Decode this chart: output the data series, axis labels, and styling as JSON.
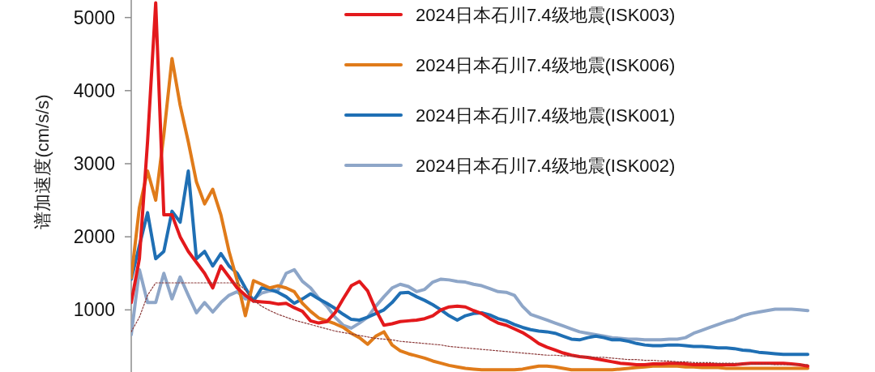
{
  "chart_data": {
    "type": "line",
    "ylabel": "谱加速度(cm/s/s)",
    "categories": [
      null,
      null,
      null,
      null,
      null,
      null,
      null,
      null,
      null,
      null,
      null,
      null,
      null,
      null,
      null,
      null,
      null,
      null,
      null,
      null,
      null,
      null,
      null,
      null,
      null,
      null,
      null,
      null,
      null,
      null,
      null,
      null,
      null,
      null,
      null,
      null,
      null,
      null,
      null,
      null,
      null,
      null,
      null,
      null,
      null,
      null,
      null,
      null,
      null,
      null,
      null,
      null,
      null,
      null,
      null,
      null,
      null,
      null,
      null,
      null,
      null,
      null,
      null,
      null,
      null,
      null,
      null,
      null,
      null,
      null,
      null,
      null,
      null,
      null,
      null,
      null,
      null,
      null,
      null,
      null,
      null,
      null,
      null,
      null
    ],
    "series": [
      {
        "line_style": "dotted",
        "color": "#8b3a3a",
        "values": [
          700,
          900,
          1200,
          1370,
          1370,
          1370,
          1370,
          1370,
          1370,
          1370,
          1370,
          1370,
          1370,
          1370,
          1270,
          1130,
          1050,
          990,
          940,
          900,
          860,
          830,
          800,
          770,
          740,
          710,
          690,
          670,
          650,
          630,
          610,
          600,
          590,
          570,
          560,
          550,
          540,
          530,
          520,
          500,
          490,
          480,
          470,
          460,
          450,
          440,
          430,
          420,
          410,
          400,
          390,
          380,
          380,
          370,
          370,
          360,
          360,
          350,
          350,
          340,
          330,
          320,
          320,
          310,
          310,
          300,
          300,
          290,
          290,
          280,
          280,
          280,
          270,
          270,
          270,
          260,
          260,
          260,
          260,
          250,
          250,
          250,
          250,
          250
        ]
      },
      {
        "name": "2024日本石川7.4级地震(ISK002)",
        "color": "#8ea6c8",
        "values": [
          660,
          1550,
          1100,
          1100,
          1500,
          1150,
          1450,
          1200,
          960,
          1100,
          970,
          1100,
          1200,
          1250,
          1150,
          1150,
          1230,
          1260,
          1270,
          1500,
          1550,
          1390,
          1300,
          1160,
          1050,
          900,
          790,
          750,
          820,
          900,
          1050,
          1180,
          1300,
          1350,
          1320,
          1250,
          1280,
          1380,
          1420,
          1410,
          1390,
          1380,
          1350,
          1330,
          1290,
          1250,
          1240,
          1200,
          1050,
          940,
          900,
          860,
          820,
          780,
          740,
          700,
          680,
          660,
          640,
          620,
          610,
          600,
          600,
          590,
          590,
          590,
          600,
          600,
          620,
          680,
          720,
          760,
          800,
          840,
          870,
          920,
          950,
          970,
          990,
          1010,
          1010,
          1010,
          1000,
          990
        ]
      },
      {
        "name": "2024日本石川7.4级地震(ISK001)",
        "color": "#1f6fb4",
        "values": [
          1420,
          1880,
          2330,
          1700,
          1800,
          2350,
          2200,
          2900,
          1700,
          1800,
          1600,
          1770,
          1600,
          1500,
          1300,
          1120,
          1300,
          1280,
          1240,
          1180,
          1090,
          1150,
          1220,
          1150,
          1090,
          1020,
          940,
          870,
          860,
          900,
          950,
          1000,
          1100,
          1230,
          1240,
          1180,
          1130,
          1070,
          1000,
          920,
          860,
          920,
          950,
          960,
          930,
          880,
          850,
          800,
          760,
          730,
          710,
          700,
          680,
          640,
          600,
          590,
          620,
          640,
          620,
          590,
          590,
          570,
          540,
          520,
          510,
          510,
          520,
          520,
          510,
          500,
          500,
          490,
          480,
          480,
          470,
          450,
          440,
          420,
          410,
          400,
          390,
          390,
          390,
          390
        ]
      },
      {
        "name": "2024日本石川7.4级地震(ISK006)",
        "color": "#e07b1a",
        "values": [
          1440,
          2400,
          2900,
          2500,
          3400,
          4440,
          3800,
          3300,
          2750,
          2450,
          2650,
          2300,
          1800,
          1400,
          920,
          1400,
          1350,
          1300,
          1330,
          1300,
          1250,
          1090,
          980,
          890,
          850,
          810,
          760,
          680,
          620,
          530,
          640,
          700,
          520,
          440,
          400,
          370,
          340,
          300,
          270,
          240,
          220,
          200,
          190,
          180,
          180,
          180,
          180,
          180,
          190,
          210,
          230,
          230,
          220,
          200,
          180,
          180,
          180,
          180,
          180,
          180,
          190,
          200,
          210,
          220,
          230,
          230,
          230,
          230,
          220,
          220,
          210,
          210,
          210,
          200,
          200,
          200,
          200,
          200,
          200,
          200,
          200,
          200,
          200,
          200
        ]
      },
      {
        "name": "2024日本石川7.4级地震(ISK003)",
        "color": "#e3191c",
        "values": [
          1100,
          1700,
          3300,
          5200,
          2300,
          2300,
          2000,
          1800,
          1650,
          1500,
          1300,
          1600,
          1450,
          1300,
          1200,
          1120,
          1110,
          1100,
          1080,
          1090,
          1030,
          980,
          850,
          820,
          840,
          960,
          1150,
          1330,
          1390,
          1260,
          1000,
          790,
          810,
          840,
          850,
          860,
          880,
          920,
          1000,
          1040,
          1050,
          1040,
          990,
          950,
          880,
          820,
          790,
          740,
          690,
          620,
          540,
          490,
          450,
          410,
          380,
          360,
          350,
          330,
          310,
          290,
          270,
          260,
          250,
          250,
          260,
          260,
          270,
          270,
          260,
          250,
          250,
          250,
          250,
          250,
          250,
          260,
          270,
          270,
          270,
          270,
          270,
          260,
          250,
          230
        ]
      }
    ],
    "ylim": [
      150,
      5240
    ],
    "yticks": [
      1000,
      2000,
      3000,
      4000,
      5000
    ],
    "tick_labels": "y",
    "legend": "top right"
  }
}
